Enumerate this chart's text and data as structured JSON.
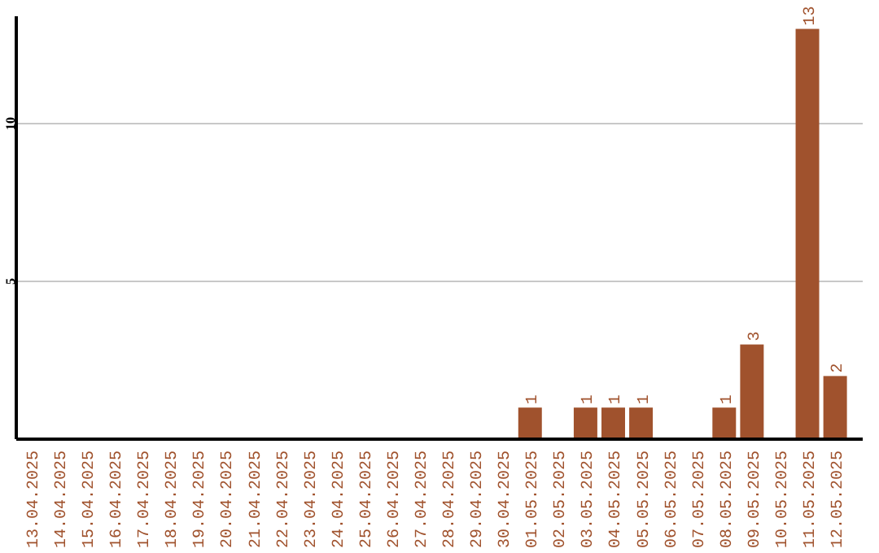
{
  "chart_data": {
    "type": "bar",
    "categories": [
      "13.04.2025",
      "14.04.2025",
      "15.04.2025",
      "16.04.2025",
      "17.04.2025",
      "18.04.2025",
      "19.04.2025",
      "20.04.2025",
      "21.04.2025",
      "22.04.2025",
      "23.04.2025",
      "24.04.2025",
      "25.04.2025",
      "26.04.2025",
      "27.04.2025",
      "28.04.2025",
      "29.04.2025",
      "30.04.2025",
      "01.05.2025",
      "02.05.2025",
      "03.05.2025",
      "04.05.2025",
      "05.05.2025",
      "06.05.2025",
      "07.05.2025",
      "08.05.2025",
      "09.05.2025",
      "10.05.2025",
      "11.05.2025",
      "12.05.2025"
    ],
    "values": [
      0,
      0,
      0,
      0,
      0,
      0,
      0,
      0,
      0,
      0,
      0,
      0,
      0,
      0,
      0,
      0,
      0,
      0,
      1,
      0,
      1,
      1,
      1,
      0,
      0,
      1,
      3,
      0,
      13,
      2
    ],
    "value_labels": [
      null,
      null,
      null,
      null,
      null,
      null,
      null,
      null,
      null,
      null,
      null,
      null,
      null,
      null,
      null,
      null,
      null,
      null,
      "1",
      null,
      "1",
      "1",
      "1",
      null,
      null,
      "1",
      "3",
      null,
      "13",
      "2"
    ],
    "color": "#a0522d",
    "ylim": [
      0,
      13.4
    ],
    "yticks": [
      5,
      10
    ],
    "grid": "y"
  }
}
